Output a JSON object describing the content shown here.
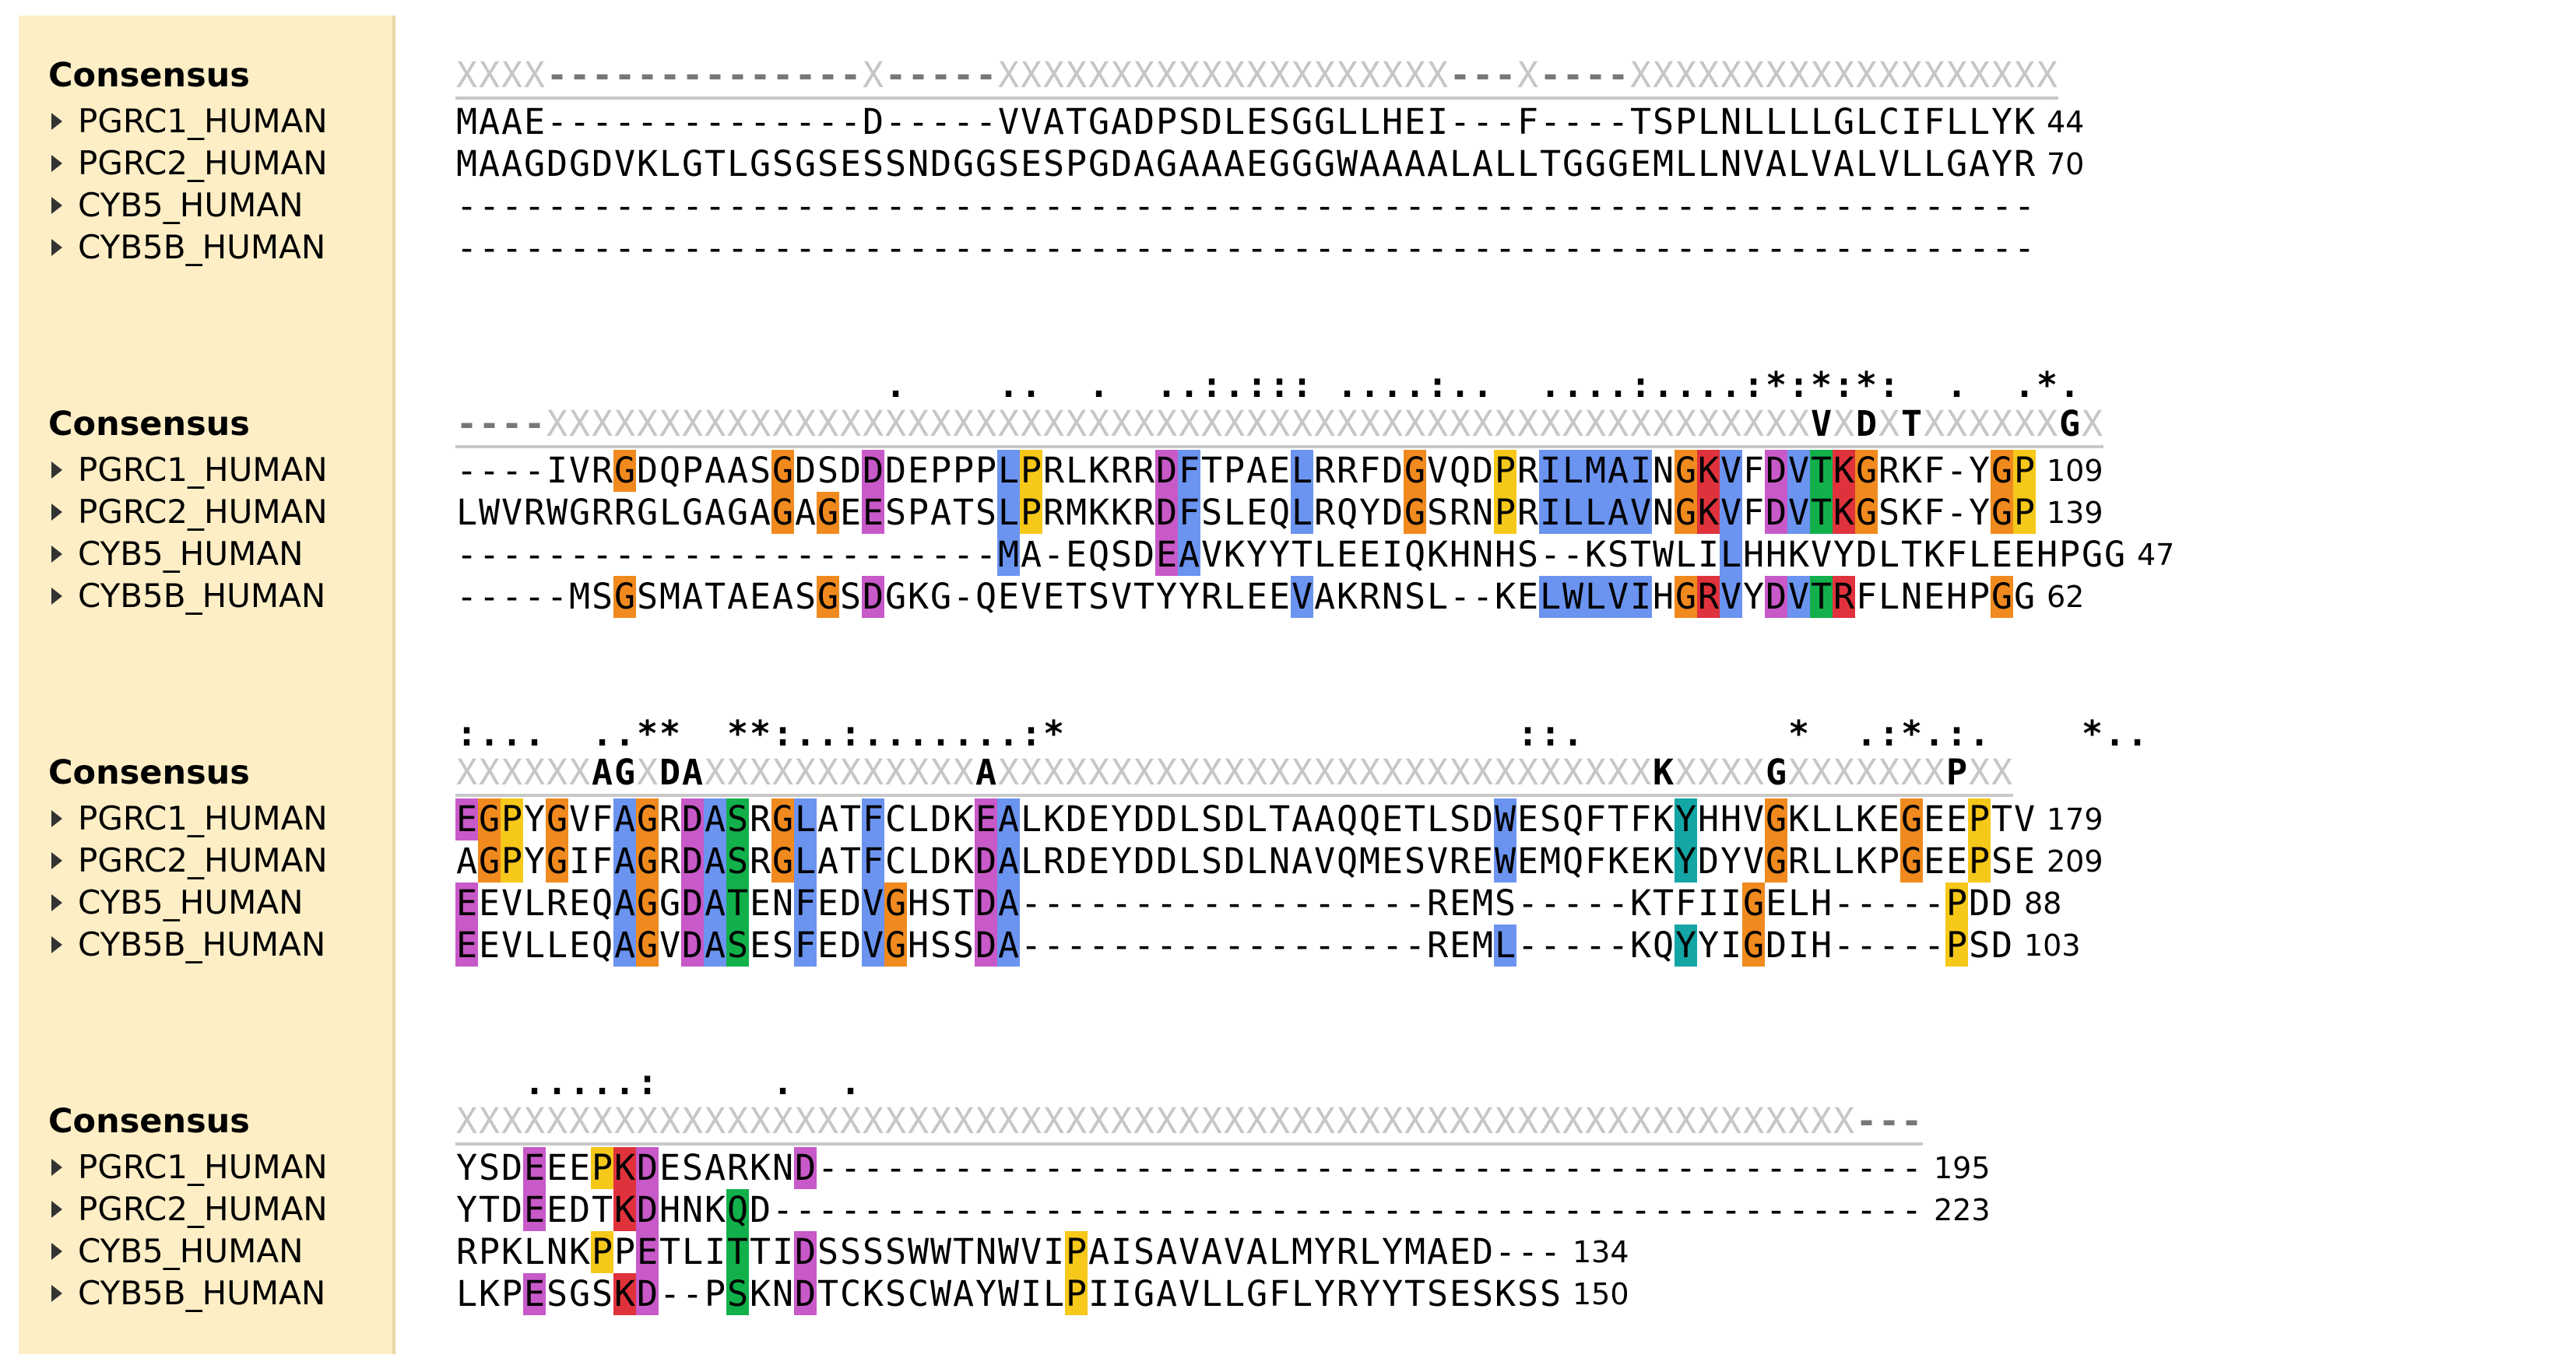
{
  "labels": {
    "consensus": "Consensus",
    "sequences": [
      "PGRC1_HUMAN",
      "PGRC2_HUMAN",
      "CYB5_HUMAN",
      "CYB5B_HUMAN"
    ]
  },
  "colors": {
    "G": "#f08a1e",
    "P": "#f6c81a",
    "N": "#11b04b",
    "T": "#11b04b",
    "S": "#11b04b",
    "Q": "#11b04b",
    "K": "#e0323c",
    "R": "#e0323c",
    "D": "#c859c8",
    "E": "#c859c8",
    "H": "#14a5a5",
    "Y": "#14a5a5",
    "A": "#6b93f0",
    "V": "#6b93f0",
    "L": "#6b93f0",
    "I": "#6b93f0",
    "M": "#6b93f0",
    "F": "#6b93f0",
    "W": "#6b93f0",
    "C": "#6b93f0"
  },
  "blocks": [
    {
      "symbols": "",
      "consensus": "XXXX--------------X-----XXXXXXXXXXXXXXXXXXXX---X----XXXXXXXXXXXXXXXXXXX",
      "sequences": [
        "MAAE--------------D-----VVATGADPSDLESGGLLHEI---F----TSPLNLLLLGLCIFLLYK",
        "MAAGDGDVKLGTLGSGSESSNDGGSESPGDAGAAAEGGGWAAAALALLTGGGEMLLNVALVALVLLGAYR",
        "----------------------------------------------------------------------",
        "----------------------------------------------------------------------"
      ],
      "colored": [
        "....oo..p.....p......m..mo..pp..........................p.n....o.........",
        "...o.o...o..o.o.......oo...po........ooo.........ooo......n.........o...",
        "",
        ""
      ],
      "numbers": [
        "44",
        "70",
        "",
        ""
      ]
    },
    {
      "symbols": "                   .    ..  .  ..:.::: ....:..  ....:....:*:*:*:  .  .*.",
      "consensus": "----XXXXXXXXXXXXXXXXXXXXXXXXXXXXXXXXXXXXXXXXXXXXXXXXXXXXXXXXVXDXTXXXXXXGX",
      "sequences": [
        "----IVRGDQPAASGDSDDDEPPPLPRLKRRDFTPAELRRFDGVQDPRILMAINGKVFDVTKGRKF-YGP",
        "LWVRWGRRGLGAGAGAGEESPATSLPRMKKRDFSLEQLRQYDGSRNPRILLAVNGKVFDVTKGSKF-YGP",
        "------------------------MA-EQSDEAVKYYTLEEIQKHNHS--KSTWLILHHKVYDLTKFLEEHPGG",
        "-----MSGSMATAEASGSDGKG-QEVETSVTYYRLEEVAKRNSL--KELWLVIHGRVYDVTRFLNEHPGG"
      ],
      "numbers": [
        "109",
        "139",
        "47",
        "62"
      ]
    },
    {
      "symbols": ":...  ..**  **:..:.......:*                    ::.         *  .:*.:.    *..",
      "consensus": "XXXXXXAGXDAXXXXXXXXXXXXAXXXXXXXXXXXXXXXXXXXXXXXXXXXXXKXXXXGXXXXXXXPXX",
      "sequences": [
        "EGPYGVFAGRDASRGLATFCLDKEALKDEYDDLSDLTAAQQETLSDWESQFTFKYHHVGKLLKEGEEPTV",
        "AGPYGIFAGRDASRGLATFCLDKDALRDEYDDLSDLNAVQMESVREWEMQFKEKYDYVGRLLKPGEEPSE",
        "EEVLREQAGGDATENFEDVGHSTDA------------------REMS-----KTFIIGELH-----PDD",
        "EEVLLEQAGVDASESFEDVGHSSDA------------------REML-----KQYYIGDIH-----PSD"
      ],
      "numbers": [
        "179",
        "209",
        "88",
        "103"
      ]
    },
    {
      "symbols": "   .....:     .  .",
      "consensus": "XXXXXXXXXXXXXXXXXXXXXXXXXXXXXXXXXXXXXXXXXXXXXXXXXXXXXXXXXXXXXX---",
      "sequences": [
        "YSDEEEPKDESARKND-------------------------------------------------",
        "YTDEEDTKDHNKQD---------------------------------------------------",
        "RPKLNKPPETLITTIDSSSSWWTNWVIPAISAVAVALMYRLYMAED---",
        "LKPESGSKD--PSKNDTCKSCWAYWILPIIGAVLLGFLYRYYTSESKSS"
      ],
      "numbers": [
        "195",
        "223",
        "134",
        "150"
      ]
    }
  ]
}
